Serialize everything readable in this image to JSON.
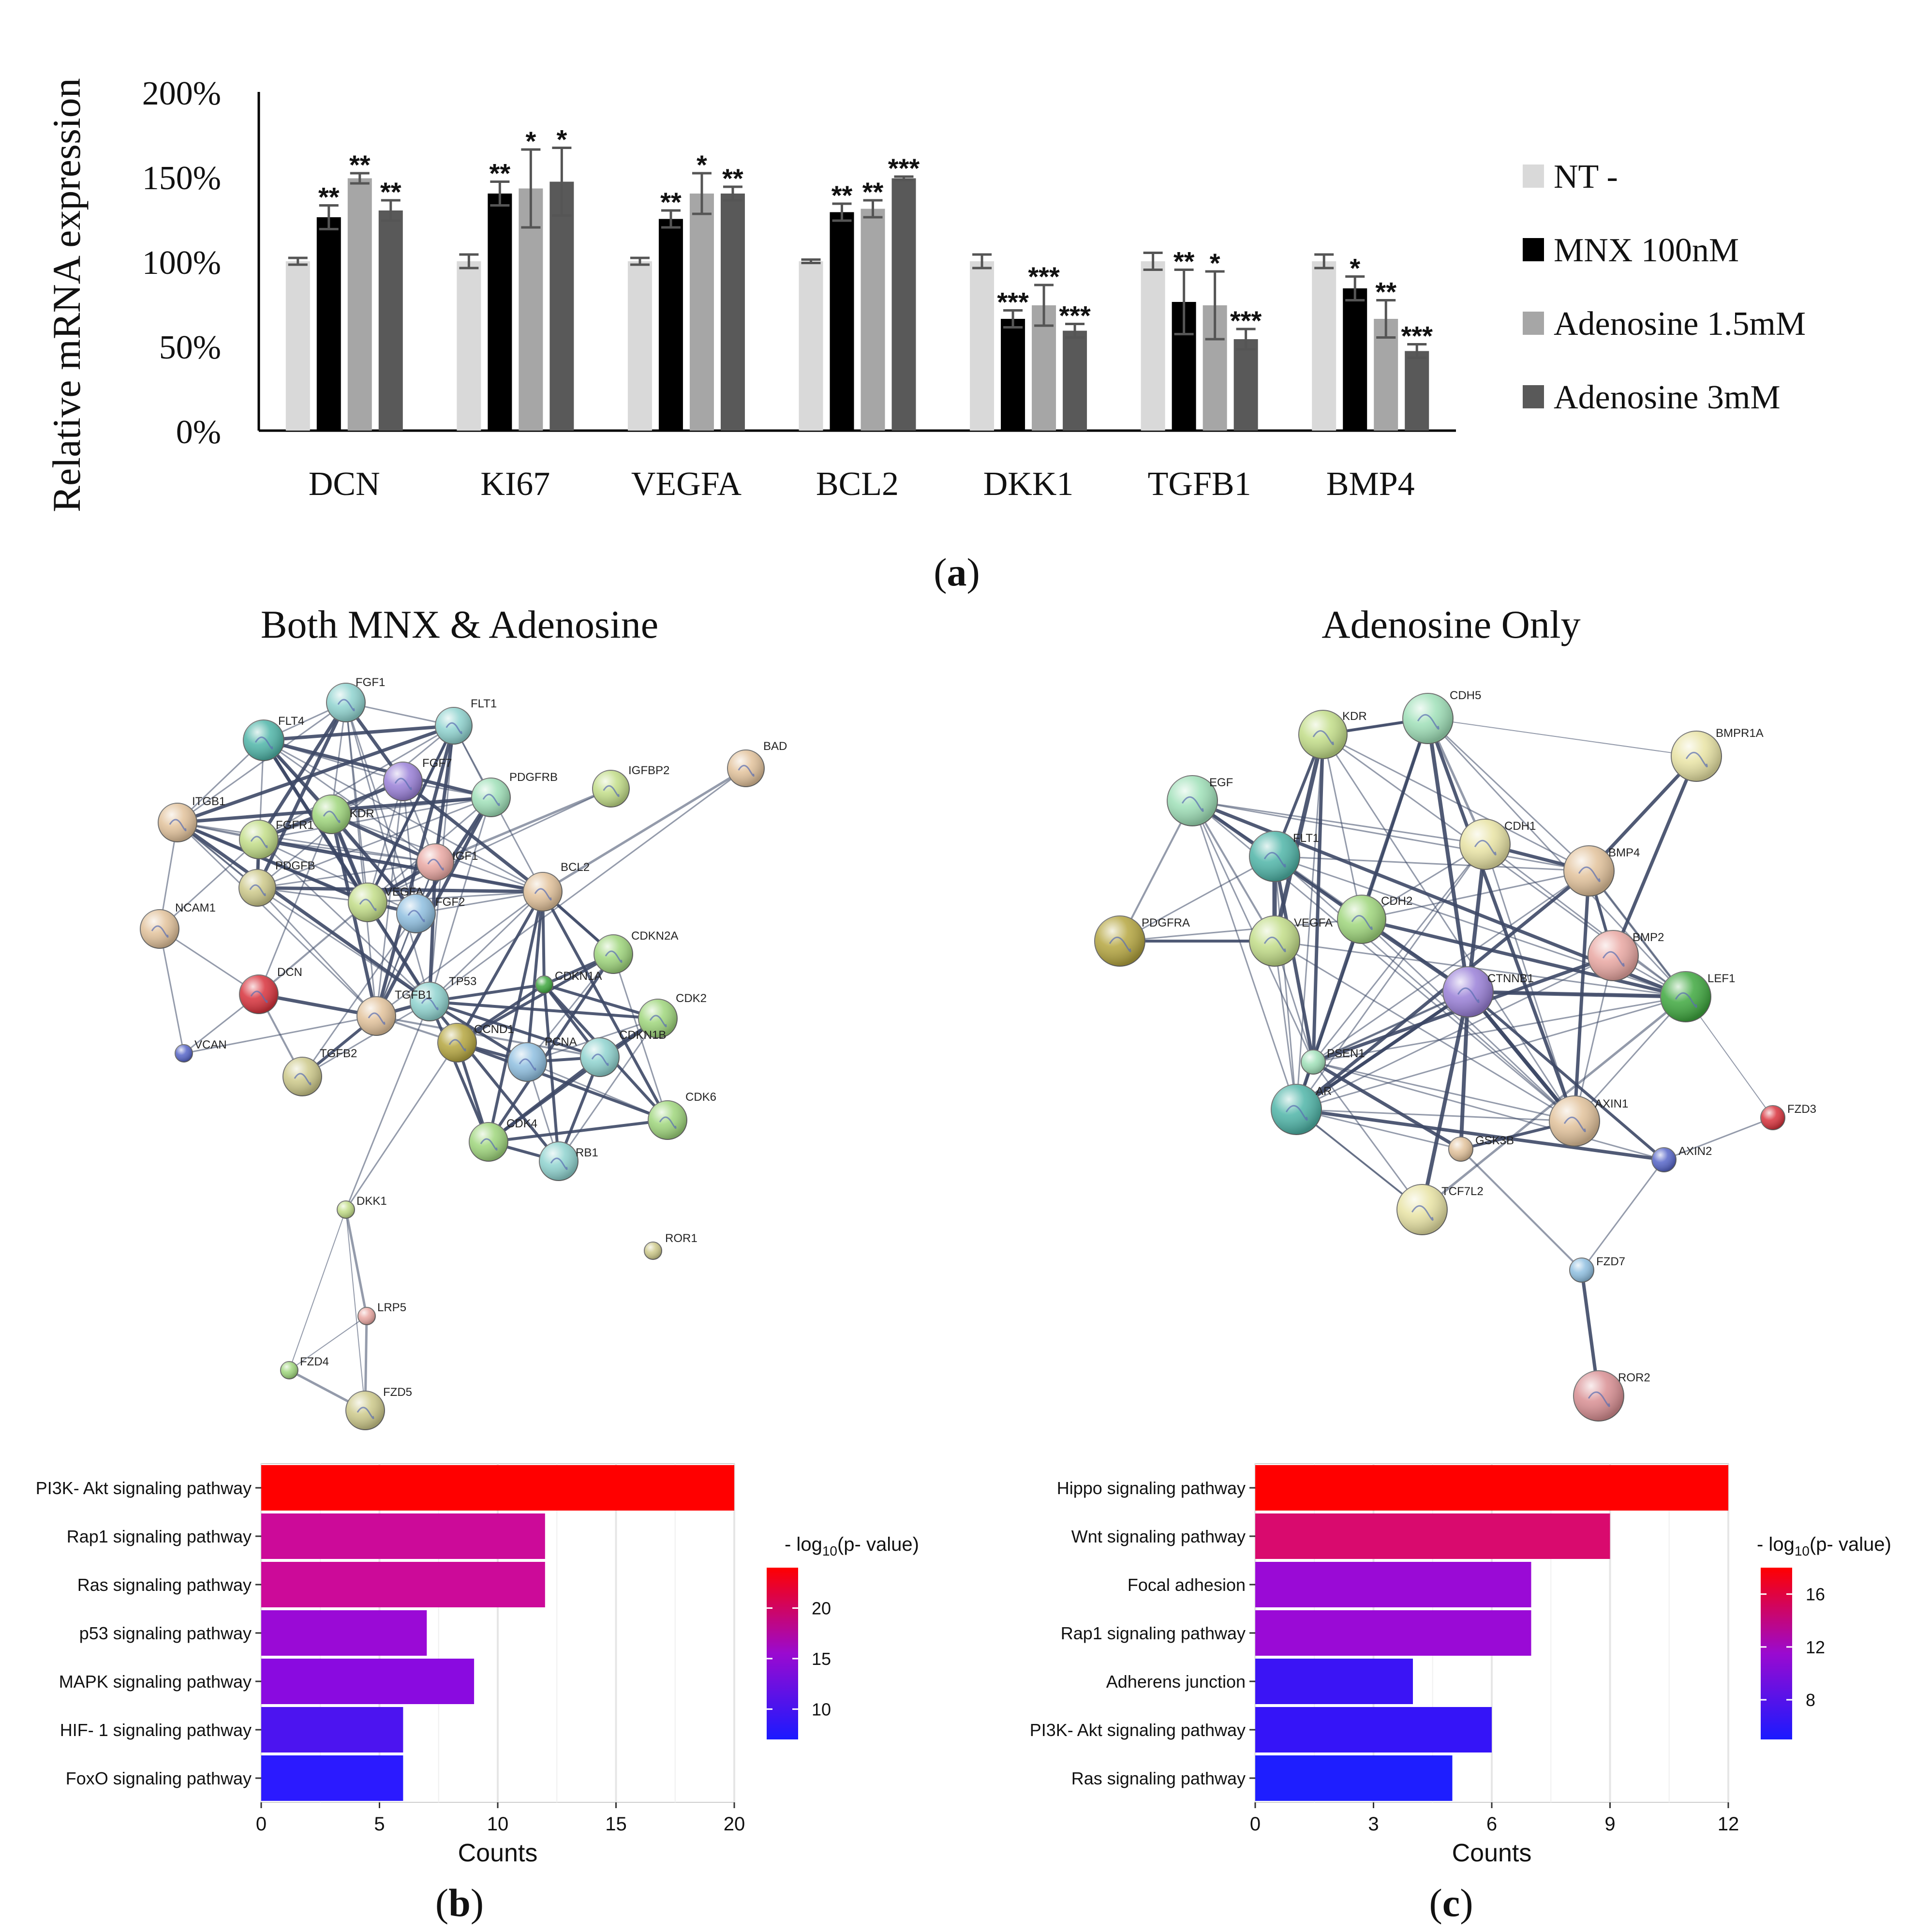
{
  "panel_a": {
    "caption_open": "(",
    "caption_letter": "a",
    "caption_close": ")",
    "chart_data": {
      "type": "bar",
      "ylabel": "Relative mRNA expression",
      "yticks": [
        "0%",
        "50%",
        "100%",
        "150%",
        "200%"
      ],
      "ylim": [
        0,
        200
      ],
      "categories": [
        "DCN",
        "KI67",
        "VEGFA",
        "BCL2",
        "DKK1",
        "TGFB1",
        "BMP4"
      ],
      "series": [
        {
          "name": "NT -",
          "color": "#d9d9d9",
          "values": [
            100,
            100,
            100,
            100,
            100,
            100,
            100
          ],
          "errors": [
            2,
            4,
            2,
            1,
            4,
            5,
            4
          ],
          "sig": [
            "",
            "",
            "",
            "",
            "",
            "",
            ""
          ]
        },
        {
          "name": "MNX 100nM",
          "color": "#000000",
          "values": [
            126,
            140,
            125,
            129,
            66,
            76,
            84
          ],
          "errors": [
            7,
            7,
            5,
            5,
            5,
            19,
            7
          ],
          "sig": [
            "**",
            "**",
            "**",
            "**",
            "***",
            "**",
            "*"
          ]
        },
        {
          "name": "Adenosine 1.5mM",
          "color": "#a6a6a6",
          "values": [
            149,
            143,
            140,
            131,
            74,
            74,
            66
          ],
          "errors": [
            3,
            23,
            12,
            5,
            12,
            20,
            11
          ],
          "sig": [
            "**",
            "*",
            "*",
            "**",
            "***",
            "*",
            "**"
          ]
        },
        {
          "name": "Adenosine 3mM",
          "color": "#595959",
          "values": [
            130,
            147,
            140,
            149,
            59,
            54,
            47
          ],
          "errors": [
            6,
            20,
            4,
            1,
            4,
            6,
            4
          ],
          "sig": [
            "**",
            "*",
            "**",
            "***",
            "***",
            "***",
            "***"
          ]
        }
      ]
    }
  },
  "panel_b": {
    "network_title": "Both MNX & Adenosine",
    "network_nodes": [
      "FGF1",
      "FLT1",
      "FLT4",
      "FGF7",
      "PDGFRB",
      "IGFBP2",
      "BAD",
      "ITGB1",
      "FGFR1",
      "KDR",
      "IGF1",
      "PDGFB",
      "VEGFA",
      "FGF2",
      "BCL2",
      "NCAM1",
      "CDKN2A",
      "DCN",
      "TP53",
      "TGFB1",
      "CDKN1A",
      "CDK2",
      "CCND1",
      "VCAN",
      "PCNA",
      "CDKN1B",
      "TGFB2",
      "CDK6",
      "CDK4",
      "RB1",
      "DKK1",
      "ROR1",
      "LRP5",
      "FZD4",
      "FZD5"
    ],
    "caption_open": "(",
    "caption_letter": "b",
    "caption_close": ")",
    "legend_title_prefix": "- log",
    "legend_title_sub": "10",
    "legend_title_suffix": "(p- value)",
    "chart_data": {
      "type": "bar",
      "orientation": "horizontal",
      "categories": [
        "PI3K- Akt signaling pathway",
        "Rap1 signaling pathway",
        "Ras signaling pathway",
        "p53 signaling pathway",
        "MAPK signaling pathway",
        "HIF- 1 signaling pathway",
        "FoxO signaling pathway"
      ],
      "values": [
        20,
        12,
        12,
        7,
        9,
        6,
        6
      ],
      "colors": [
        "#ff0000",
        "#cc0a99",
        "#cc0a99",
        "#9a0ad6",
        "#8a0ae0",
        "#4c14f0",
        "#2b1aff"
      ],
      "xlabel": "Counts",
      "xticks": [
        "0",
        "5",
        "10",
        "15",
        "20"
      ],
      "xlim": [
        0,
        20
      ],
      "colorbar_ticks": [
        "20",
        "15",
        "10"
      ],
      "colorbar_range": [
        7,
        24
      ]
    }
  },
  "panel_c": {
    "network_title": "Adenosine Only",
    "network_nodes": [
      "KDR",
      "CDH5",
      "BMPR1A",
      "EGF",
      "CDH1",
      "FLT1",
      "BMP4",
      "CDH2",
      "PDGFRA",
      "VEGFA",
      "BMP2",
      "CTNNB1",
      "LEF1",
      "PSEN1",
      "AR",
      "AXIN1",
      "FZD3",
      "GSK3B",
      "AXIN2",
      "TCF7L2",
      "FZD7",
      "ROR2"
    ],
    "caption_open": "(",
    "caption_letter": "c",
    "caption_close": ")",
    "legend_title_prefix": "- log",
    "legend_title_sub": "10",
    "legend_title_suffix": "(p- value)",
    "chart_data": {
      "type": "bar",
      "orientation": "horizontal",
      "categories": [
        "Hippo signaling pathway",
        "Wnt signaling pathway",
        "Focal adhesion",
        "Rap1 signaling pathway",
        "Adherens junction",
        "PI3K- Akt signaling pathway",
        "Ras signaling pathway"
      ],
      "values": [
        12,
        9,
        7,
        7,
        4,
        6,
        5
      ],
      "colors": [
        "#ff0000",
        "#d90a6e",
        "#9a0ad6",
        "#9a0ad6",
        "#3b14f5",
        "#3514f8",
        "#1e1eff"
      ],
      "xlabel": "Counts",
      "xticks": [
        "0",
        "3",
        "6",
        "9",
        "12"
      ],
      "xlim": [
        0,
        12
      ],
      "colorbar_ticks": [
        "16",
        "12",
        "8"
      ],
      "colorbar_range": [
        5,
        18
      ]
    }
  }
}
